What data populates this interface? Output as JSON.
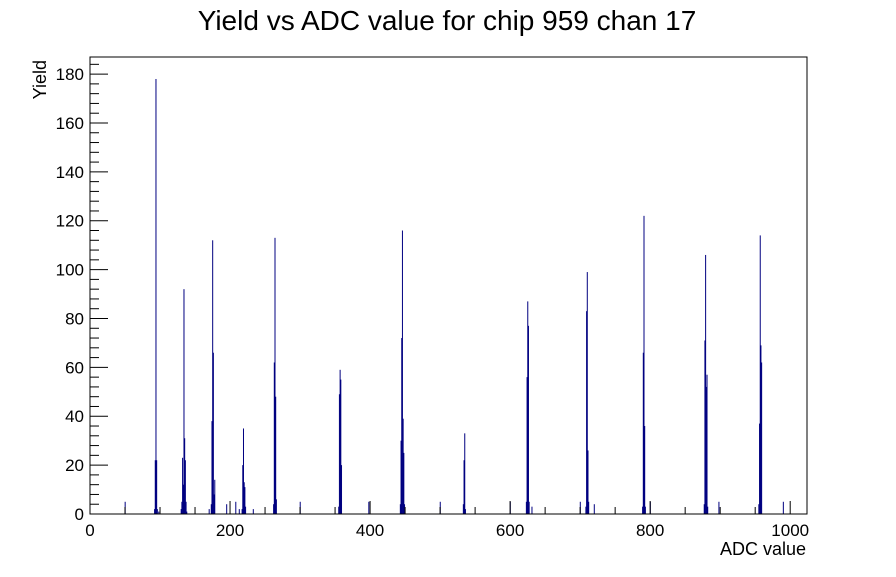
{
  "chart_data": {
    "type": "bar",
    "title": "Yield vs ADC value for chip 959 chan 17",
    "xlabel": "ADC value",
    "ylabel": "Yield",
    "xlim": [
      0,
      1024
    ],
    "ylim": [
      0,
      187
    ],
    "x_ticks": [
      0,
      200,
      400,
      600,
      800,
      1000
    ],
    "y_ticks": [
      0,
      20,
      40,
      60,
      80,
      100,
      120,
      140,
      160,
      180
    ],
    "grid": false,
    "legend": "none",
    "series_color": "#000080",
    "bins": [
      [
        50,
        5
      ],
      [
        92,
        2
      ],
      [
        93,
        22
      ],
      [
        94,
        178
      ],
      [
        95,
        22
      ],
      [
        96,
        2
      ],
      [
        98,
        1
      ],
      [
        130,
        2
      ],
      [
        131,
        5
      ],
      [
        132,
        23
      ],
      [
        133,
        12
      ],
      [
        134,
        92
      ],
      [
        135,
        31
      ],
      [
        136,
        22
      ],
      [
        137,
        5
      ],
      [
        138,
        1
      ],
      [
        170,
        2
      ],
      [
        173,
        4
      ],
      [
        174,
        38
      ],
      [
        175,
        112
      ],
      [
        176,
        66
      ],
      [
        177,
        8
      ],
      [
        178,
        14
      ],
      [
        195,
        4
      ],
      [
        208,
        5
      ],
      [
        213,
        2
      ],
      [
        217,
        2
      ],
      [
        218,
        20
      ],
      [
        219,
        35
      ],
      [
        220,
        13
      ],
      [
        221,
        11
      ],
      [
        222,
        3
      ],
      [
        233,
        2
      ],
      [
        262,
        4
      ],
      [
        263,
        62
      ],
      [
        264,
        113
      ],
      [
        265,
        48
      ],
      [
        266,
        6
      ],
      [
        300,
        5
      ],
      [
        355,
        3
      ],
      [
        356,
        49
      ],
      [
        357,
        59
      ],
      [
        358,
        55
      ],
      [
        359,
        20
      ],
      [
        398,
        5
      ],
      [
        443,
        4
      ],
      [
        444,
        30
      ],
      [
        445,
        72
      ],
      [
        446,
        116
      ],
      [
        447,
        39
      ],
      [
        448,
        25
      ],
      [
        449,
        4
      ],
      [
        500,
        5
      ],
      [
        533,
        4
      ],
      [
        534,
        22
      ],
      [
        535,
        33
      ],
      [
        536,
        2
      ],
      [
        600,
        5
      ],
      [
        623,
        5
      ],
      [
        624,
        56
      ],
      [
        625,
        87
      ],
      [
        626,
        77
      ],
      [
        627,
        5
      ],
      [
        631,
        3
      ],
      [
        700,
        5
      ],
      [
        708,
        3
      ],
      [
        709,
        83
      ],
      [
        710,
        99
      ],
      [
        711,
        26
      ],
      [
        712,
        5
      ],
      [
        720,
        4
      ],
      [
        789,
        3
      ],
      [
        790,
        66
      ],
      [
        791,
        122
      ],
      [
        792,
        36
      ],
      [
        793,
        3
      ],
      [
        800,
        5
      ],
      [
        877,
        4
      ],
      [
        878,
        71
      ],
      [
        879,
        106
      ],
      [
        880,
        52
      ],
      [
        881,
        57
      ],
      [
        882,
        3
      ],
      [
        898,
        5
      ],
      [
        955,
        4
      ],
      [
        956,
        37
      ],
      [
        957,
        114
      ],
      [
        958,
        69
      ],
      [
        959,
        62
      ],
      [
        990,
        5
      ]
    ]
  }
}
